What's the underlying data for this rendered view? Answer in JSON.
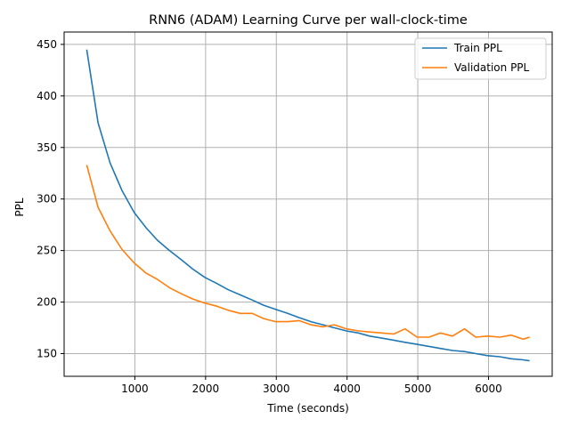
{
  "chart_data": {
    "type": "line",
    "title": "RNN6 (ADAM) Learning Curve per wall-clock-time",
    "xlabel": "Time (seconds)",
    "ylabel": "PPL",
    "xlim": [
      0,
      6900
    ],
    "ylim": [
      128,
      462
    ],
    "xticks": [
      1000,
      2000,
      3000,
      4000,
      5000,
      6000
    ],
    "yticks": [
      150,
      200,
      250,
      300,
      350,
      400,
      450
    ],
    "grid": true,
    "legend_position": "top-right",
    "series": [
      {
        "name": "Train PPL",
        "color": "#1f77b4",
        "x": [
          320,
          480,
          650,
          820,
          990,
          1160,
          1320,
          1490,
          1660,
          1820,
          1990,
          2160,
          2320,
          2490,
          2660,
          2820,
          2990,
          3160,
          3320,
          3490,
          3660,
          3820,
          3990,
          4160,
          4320,
          4490,
          4660,
          4820,
          4990,
          5160,
          5320,
          5490,
          5660,
          5820,
          5990,
          6160,
          6320,
          6490,
          6580
        ],
        "y": [
          445,
          374,
          335,
          308,
          287,
          272,
          260,
          250,
          241,
          232,
          224,
          218,
          212,
          207,
          202,
          197,
          193,
          189,
          185,
          181,
          178,
          175,
          172,
          170,
          167,
          165,
          163,
          161,
          159,
          157,
          155,
          153,
          152,
          150,
          148,
          147,
          145,
          144,
          143
        ]
      },
      {
        "name": "Validation PPL",
        "color": "#ff7f0e",
        "x": [
          320,
          480,
          650,
          820,
          990,
          1160,
          1320,
          1490,
          1660,
          1820,
          1990,
          2160,
          2320,
          2490,
          2660,
          2820,
          2990,
          3160,
          3320,
          3490,
          3660,
          3820,
          3990,
          4160,
          4320,
          4490,
          4660,
          4820,
          4990,
          5160,
          5320,
          5490,
          5660,
          5820,
          5990,
          6160,
          6320,
          6490,
          6580
        ],
        "y": [
          333,
          292,
          269,
          251,
          238,
          228,
          222,
          214,
          208,
          203,
          199,
          196,
          192,
          189,
          189,
          184,
          181,
          181,
          182,
          178,
          176,
          178,
          174,
          172,
          171,
          170,
          169,
          174,
          166,
          166,
          170,
          167,
          174,
          166,
          167,
          166,
          168,
          164,
          166
        ]
      }
    ]
  }
}
